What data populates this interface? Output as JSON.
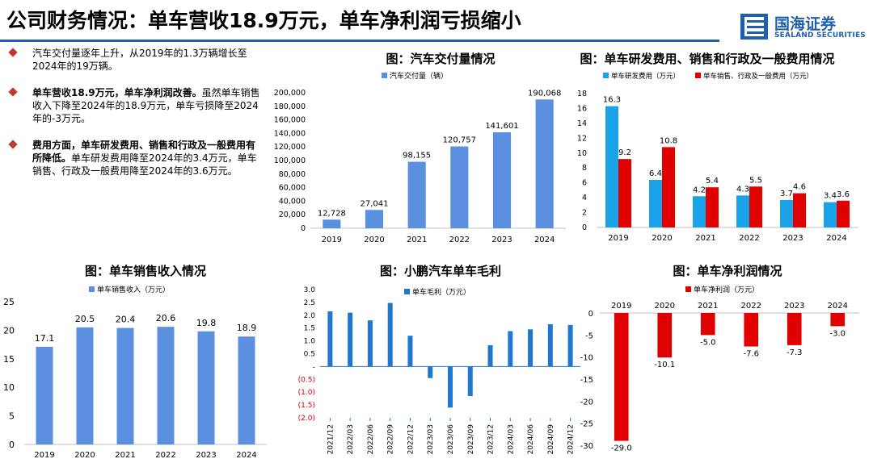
{
  "header": {
    "title": "公司财务情况：单车营收18.9万元，单车净利润亏损缩小",
    "logo_cn": "国海证券",
    "logo_en": "SEALAND SECURITIES",
    "accent": "#1f5fae"
  },
  "bullets": [
    {
      "bold": "",
      "text": "汽车交付量逐年上升，从2019年的1.3万辆增长至2024年的19万辆。"
    },
    {
      "bold": "单车营收18.9万元，单车净利润改善。",
      "text": "虽然单车销售收入下降至2024年的18.9万元，单车亏损降至2024年的-3万元。"
    },
    {
      "bold": "费用方面，单车研发费用、销售和行政及一般费用有所降低。",
      "text": "单车研发费用降至2024年的3.4万元，单车销售、行政及一般费用降至2024年的3.6万元。"
    }
  ],
  "chart_data": [
    {
      "id": "deliveries",
      "type": "bar",
      "title": "图：汽车交付量情况",
      "categories": [
        "2019",
        "2020",
        "2021",
        "2022",
        "2023",
        "2024"
      ],
      "series": [
        {
          "name": "汽车交付量（辆）",
          "color": "#5b8fe0",
          "values": [
            12728,
            27041,
            98155,
            120757,
            141601,
            190068
          ]
        }
      ],
      "labels": [
        "12,728",
        "27,041",
        "98,155",
        "120,757",
        "141,601",
        "190,068"
      ],
      "ylim": [
        0,
        200000
      ],
      "yticks": [
        "0",
        "20,000",
        "40,000",
        "60,000",
        "80,000",
        "100,000",
        "120,000",
        "140,000",
        "160,000",
        "180,000",
        "200,000"
      ],
      "legend": "top"
    },
    {
      "id": "expenses",
      "type": "bar",
      "title": "图：单车研发费用、销售和行政及一般费用情况",
      "categories": [
        "2019",
        "2020",
        "2021",
        "2022",
        "2023",
        "2024"
      ],
      "series": [
        {
          "name": "单车研发费用（万元）",
          "color": "#1aa3e8",
          "values": [
            16.3,
            6.4,
            4.2,
            4.3,
            3.7,
            3.4
          ]
        },
        {
          "name": "单车销售、行政及一般费用（万元）",
          "color": "#e00000",
          "values": [
            9.2,
            10.8,
            5.4,
            5.5,
            4.6,
            3.6
          ]
        }
      ],
      "ylim": [
        0,
        18
      ],
      "yticks": [
        "0",
        "2",
        "4",
        "6",
        "8",
        "10",
        "12",
        "14",
        "16",
        "18"
      ],
      "legend": "top"
    },
    {
      "id": "revenue",
      "type": "bar",
      "title": "图：单车销售收入情况",
      "categories": [
        "2019",
        "2020",
        "2021",
        "2022",
        "2023",
        "2024"
      ],
      "series": [
        {
          "name": "单车销售收入（万元）",
          "color": "#5b8fe0",
          "values": [
            17.1,
            20.5,
            20.4,
            20.6,
            19.8,
            18.9
          ]
        }
      ],
      "labels": [
        "17.1",
        "20.5",
        "20.4",
        "20.6",
        "19.8",
        "18.9"
      ],
      "ylim": [
        0,
        25
      ],
      "yticks": [
        "0",
        "5",
        "10",
        "15",
        "20",
        "25"
      ],
      "legend": "top"
    },
    {
      "id": "gross",
      "type": "bar",
      "title": "图：小鹏汽车单车毛利",
      "categories": [
        "2021/12",
        "2022/03",
        "2022/06",
        "2022/09",
        "2022/12",
        "2023/03",
        "2023/06",
        "2023/09",
        "2023/12",
        "2024/03",
        "2024/06",
        "2024/09",
        "2024/12"
      ],
      "series": [
        {
          "name": "单车毛利（万元）",
          "color": "#1f77d0",
          "values": [
            2.15,
            2.1,
            1.8,
            2.48,
            1.2,
            -0.45,
            -1.6,
            -1.15,
            0.83,
            1.38,
            1.45,
            1.65,
            1.62
          ]
        }
      ],
      "ylim": [
        -2.0,
        3.0
      ],
      "yticks": [
        "3.0",
        "2.5",
        "2.0",
        "1.5",
        "1.0",
        "0.5",
        "-",
        "(0.5)",
        "(1.0)",
        "(1.5)",
        "(2.0)"
      ],
      "legend": "top"
    },
    {
      "id": "netprofit",
      "type": "bar",
      "title": "图：单车净利润情况",
      "categories": [
        "2019",
        "2020",
        "2021",
        "2022",
        "2023",
        "2024"
      ],
      "series": [
        {
          "name": "单车净利润（万元）",
          "color": "#e00000",
          "values": [
            -29.0,
            -10.1,
            -5.0,
            -7.6,
            -7.3,
            -3.0
          ]
        }
      ],
      "labels": [
        "-29.0",
        "-10.1",
        "-5.0",
        "-7.6",
        "-7.3",
        "-3.0"
      ],
      "ylim": [
        -30,
        0
      ],
      "yticks": [
        "0",
        "-5",
        "-10",
        "-15",
        "-20",
        "-25",
        "-30"
      ],
      "legend": "top"
    }
  ]
}
